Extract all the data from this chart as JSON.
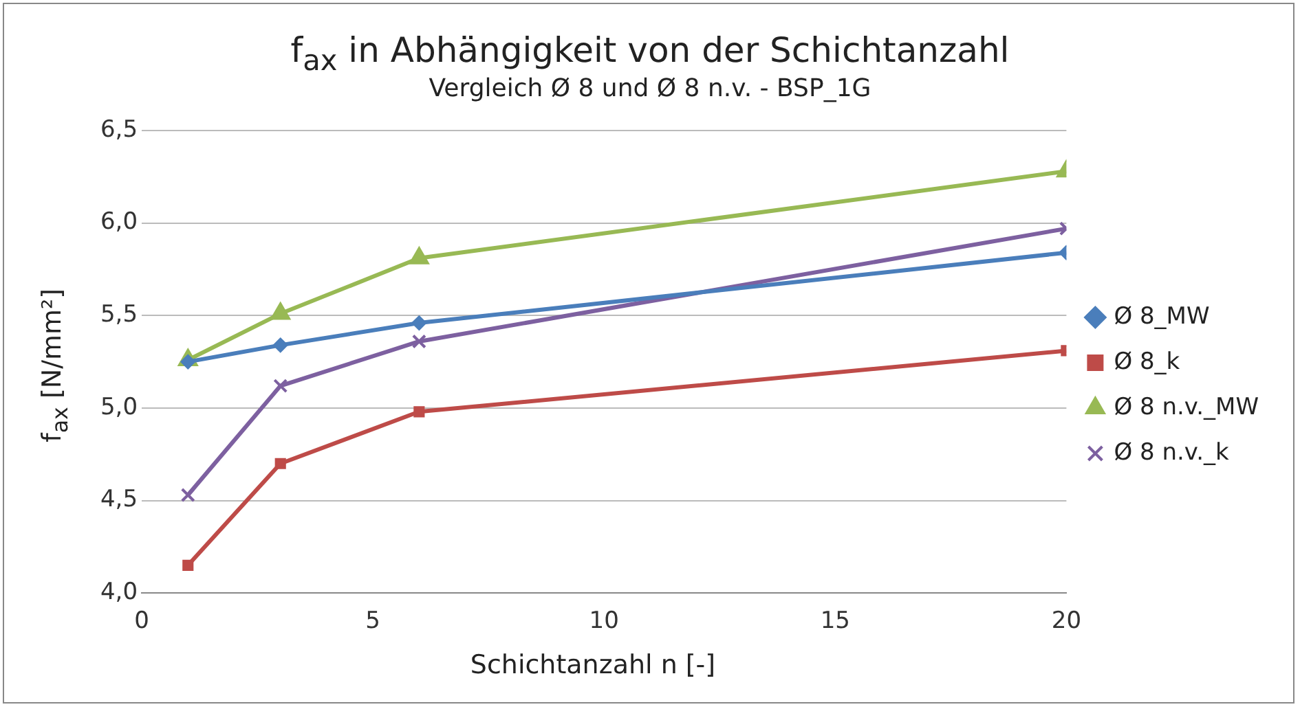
{
  "chart_data": {
    "type": "line",
    "title": "f$_{ax}$ in Abhängigkeit von der Schichtanzahl",
    "subtitle": "Vergleich Ø 8 und Ø 8 n.v. - BSP_1G",
    "xlabel": "Schichtanzahl n [-]",
    "ylabel": "f$_{ax}$ [N/mm²]",
    "x": [
      1,
      3,
      6,
      20
    ],
    "series": [
      {
        "name": "Ø 8_MW",
        "color": "#4a7ebb",
        "marker": "diamond",
        "values": [
          5.25,
          5.34,
          5.46,
          5.84
        ]
      },
      {
        "name": "Ø 8_k",
        "color": "#be4b48",
        "marker": "square",
        "values": [
          4.15,
          4.7,
          4.98,
          5.31
        ]
      },
      {
        "name": "Ø 8 n.v._MW",
        "color": "#98b954",
        "marker": "triangle",
        "values": [
          5.26,
          5.51,
          5.81,
          6.28
        ]
      },
      {
        "name": "Ø 8 n.v._k",
        "color": "#7d60a0",
        "marker": "cross",
        "values": [
          4.53,
          5.12,
          5.36,
          5.97
        ]
      }
    ],
    "xlim": [
      0,
      20
    ],
    "xticks": [
      0,
      5,
      10,
      15,
      20
    ],
    "ylim": [
      4,
      6.5
    ],
    "yticks": [
      {
        "value": 4,
        "label": "4,0"
      },
      {
        "value": 4.5,
        "label": "4,5"
      },
      {
        "value": 5,
        "label": "5,0"
      },
      {
        "value": 5.5,
        "label": "5,5"
      },
      {
        "value": 6,
        "label": "6,0"
      },
      {
        "value": 6.5,
        "label": "6,5"
      }
    ],
    "grid": "y",
    "legend": "right",
    "line_style": "solid"
  }
}
